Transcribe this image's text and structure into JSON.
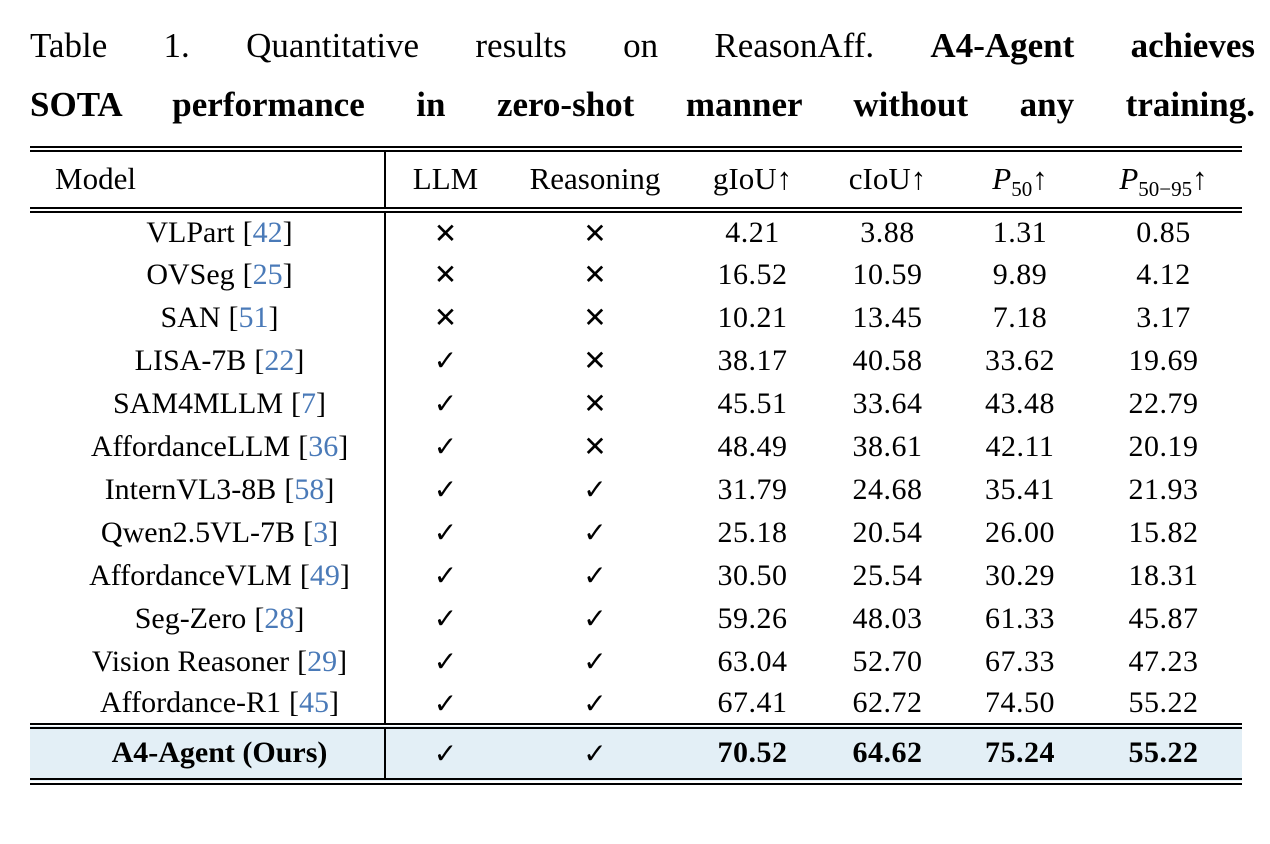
{
  "caption": {
    "line1_regular": "Table 1.  Quantitative results on ReasonAff.",
    "line1_bold": "A4-Agent achieves",
    "line2_bold": "SOTA performance in zero-shot manner without any training."
  },
  "colors": {
    "citation_blue": "#4a7ab8",
    "highlight_bg": "#e3eff6",
    "rule_black": "#000000"
  },
  "symbols": {
    "check": "✓",
    "cross": "✕",
    "up_arrow": "↑"
  },
  "table": {
    "bracket_open": "[",
    "bracket_close": "]",
    "header": {
      "model": "Model",
      "llm": "LLM",
      "reasoning": "Reasoning",
      "giou": "gIoU",
      "giou_arrow": "↑",
      "ciou": "cIoU",
      "ciou_arrow": "↑",
      "p50_base": "P",
      "p50_sub": "50",
      "p50_arrow": "↑",
      "p5095_base": "P",
      "p5095_sub": "50−95",
      "p5095_arrow": "↑"
    },
    "rows": [
      {
        "model": "VLPart",
        "cite": "42",
        "llm": "✕",
        "reasoning": "✕",
        "giou": "4.21",
        "ciou": "3.88",
        "p50": "1.31",
        "p5095": "0.85"
      },
      {
        "model": "OVSeg",
        "cite": "25",
        "llm": "✕",
        "reasoning": "✕",
        "giou": "16.52",
        "ciou": "10.59",
        "p50": "9.89",
        "p5095": "4.12"
      },
      {
        "model": "SAN",
        "cite": "51",
        "llm": "✕",
        "reasoning": "✕",
        "giou": "10.21",
        "ciou": "13.45",
        "p50": "7.18",
        "p5095": "3.17"
      },
      {
        "model": "LISA-7B",
        "cite": "22",
        "llm": "✓",
        "reasoning": "✕",
        "giou": "38.17",
        "ciou": "40.58",
        "p50": "33.62",
        "p5095": "19.69"
      },
      {
        "model": "SAM4MLLM",
        "cite": "7",
        "llm": "✓",
        "reasoning": "✕",
        "giou": "45.51",
        "ciou": "33.64",
        "p50": "43.48",
        "p5095": "22.79"
      },
      {
        "model": "AffordanceLLM",
        "cite": "36",
        "llm": "✓",
        "reasoning": "✕",
        "giou": "48.49",
        "ciou": "38.61",
        "p50": "42.11",
        "p5095": "20.19"
      },
      {
        "model": "InternVL3-8B",
        "cite": "58",
        "llm": "✓",
        "reasoning": "✓",
        "giou": "31.79",
        "ciou": "24.68",
        "p50": "35.41",
        "p5095": "21.93"
      },
      {
        "model": "Qwen2.5VL-7B",
        "cite": "3",
        "llm": "✓",
        "reasoning": "✓",
        "giou": "25.18",
        "ciou": "20.54",
        "p50": "26.00",
        "p5095": "15.82"
      },
      {
        "model": "AffordanceVLM",
        "cite": "49",
        "llm": "✓",
        "reasoning": "✓",
        "giou": "30.50",
        "ciou": "25.54",
        "p50": "30.29",
        "p5095": "18.31"
      },
      {
        "model": "Seg-Zero",
        "cite": "28",
        "llm": "✓",
        "reasoning": "✓",
        "giou": "59.26",
        "ciou": "48.03",
        "p50": "61.33",
        "p5095": "45.87"
      },
      {
        "model": "Vision Reasoner",
        "cite": "29",
        "llm": "✓",
        "reasoning": "✓",
        "giou": "63.04",
        "ciou": "52.70",
        "p50": "67.33",
        "p5095": "47.23"
      },
      {
        "model": "Affordance-R1",
        "cite": "45",
        "llm": "✓",
        "reasoning": "✓",
        "giou": "67.41",
        "ciou": "62.72",
        "p50": "74.50",
        "p5095": "55.22"
      }
    ],
    "ours": {
      "model": "A4-Agent (Ours)",
      "llm": "✓",
      "reasoning": "✓",
      "giou": "70.52",
      "ciou": "64.62",
      "p50": "75.24",
      "p5095": "55.22"
    }
  }
}
